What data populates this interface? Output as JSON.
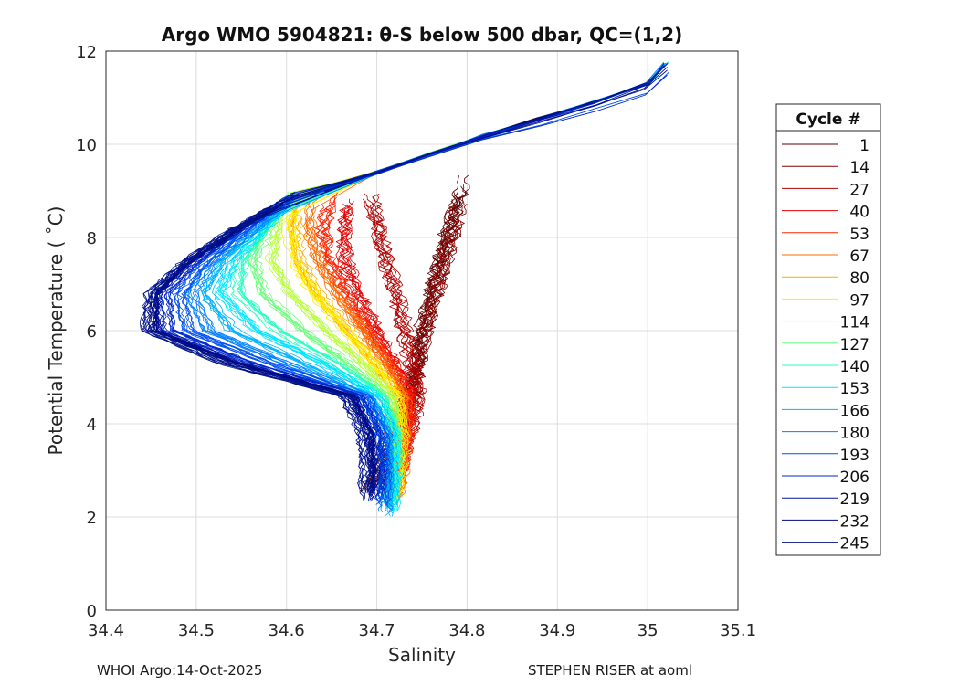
{
  "chart_data": {
    "type": "line",
    "title": "Argo WMO 5904821: θ-S below 500 dbar,  QC=(1,2)",
    "xlabel": "Salinity",
    "ylabel": "Potential Temperature ( ˚C)",
    "xlim": [
      34.4,
      35.1
    ],
    "ylim": [
      0,
      12
    ],
    "xticks": [
      34.4,
      34.5,
      34.6,
      34.7,
      34.8,
      34.9,
      35.0,
      35.1
    ],
    "xtick_labels": [
      "34.4",
      "34.5",
      "34.6",
      "34.7",
      "34.8",
      "34.9",
      "35",
      "35.1"
    ],
    "yticks": [
      0,
      2,
      4,
      6,
      8,
      10,
      12
    ],
    "ytick_labels": [
      "0",
      "2",
      "4",
      "6",
      "8",
      "10",
      "12"
    ],
    "grid": true,
    "legend": {
      "title": "Cycle #",
      "placement": "right",
      "entries": [
        {
          "label": "1",
          "color": "#5a0000"
        },
        {
          "label": "14",
          "color": "#870000"
        },
        {
          "label": "27",
          "color": "#b40000"
        },
        {
          "label": "40",
          "color": "#e00000"
        },
        {
          "label": "53",
          "color": "#ff2200"
        },
        {
          "label": "67",
          "color": "#ff6a00"
        },
        {
          "label": "80",
          "color": "#ffaa00"
        },
        {
          "label": "97",
          "color": "#ffee00"
        },
        {
          "label": "114",
          "color": "#b8ff3c"
        },
        {
          "label": "127",
          "color": "#6eff7e"
        },
        {
          "label": "140",
          "color": "#2affc0"
        },
        {
          "label": "153",
          "color": "#00e6ff"
        },
        {
          "label": "166",
          "color": "#00b4ff"
        },
        {
          "label": "180",
          "color": "#0080ff"
        },
        {
          "label": "193",
          "color": "#0050f0"
        },
        {
          "label": "206",
          "color": "#0028c8"
        },
        {
          "label": "219",
          "color": "#0010a0"
        },
        {
          "label": "232",
          "color": "#000a80"
        },
        {
          "label": "245",
          "color": "#00138f"
        }
      ]
    },
    "series": [
      {
        "name": "1",
        "color": "#5a0000",
        "x": [
          34.688,
          34.702,
          34.715,
          34.735,
          34.745,
          34.75,
          34.76,
          34.77,
          34.78,
          34.79,
          34.8
        ],
        "y": [
          2.5,
          3.0,
          3.8,
          4.6,
          5.3,
          6.0,
          6.8,
          7.5,
          8.2,
          8.8,
          9.5
        ]
      },
      {
        "name": "14",
        "color": "#870000",
        "x": [
          34.7,
          34.712,
          34.725,
          34.74,
          34.745,
          34.755,
          34.765,
          34.775,
          34.785,
          34.79
        ],
        "y": [
          2.5,
          3.0,
          3.8,
          4.6,
          5.3,
          6.0,
          6.8,
          7.5,
          8.2,
          8.9
        ]
      },
      {
        "name": "27",
        "color": "#b40000",
        "x": [
          34.712,
          34.722,
          34.735,
          34.745,
          34.738,
          34.73,
          34.72,
          34.71,
          34.7,
          34.69
        ],
        "y": [
          2.4,
          3.0,
          3.8,
          4.6,
          5.3,
          6.0,
          6.8,
          7.5,
          8.2,
          9.0
        ]
      },
      {
        "name": "40",
        "color": "#e00000",
        "x": [
          34.715,
          34.725,
          34.732,
          34.738,
          34.72,
          34.7,
          34.68,
          34.665,
          34.665,
          34.67
        ],
        "y": [
          2.4,
          3.0,
          3.8,
          4.6,
          5.3,
          6.0,
          6.8,
          7.5,
          8.2,
          9.0
        ]
      },
      {
        "name": "53",
        "color": "#ff2200",
        "x": [
          34.72,
          34.727,
          34.733,
          34.735,
          34.715,
          34.69,
          34.665,
          34.645,
          34.64,
          34.65
        ],
        "y": [
          2.4,
          3.0,
          3.8,
          4.6,
          5.3,
          6.0,
          6.8,
          7.5,
          8.2,
          9.0
        ]
      },
      {
        "name": "67",
        "color": "#ff6a00",
        "x": [
          34.722,
          34.728,
          34.732,
          34.73,
          34.71,
          34.685,
          34.655,
          34.635,
          34.625,
          34.63
        ],
        "y": [
          2.3,
          3.0,
          3.8,
          4.6,
          5.3,
          6.0,
          6.8,
          7.5,
          8.2,
          9.0
        ]
      },
      {
        "name": "80",
        "color": "#ffaa00",
        "x": [
          34.718,
          34.724,
          34.728,
          34.725,
          34.7,
          34.67,
          34.635,
          34.615,
          34.61,
          34.62
        ],
        "y": [
          2.3,
          3.0,
          3.8,
          4.6,
          5.3,
          6.0,
          6.8,
          7.5,
          8.2,
          9.0
        ]
      },
      {
        "name": "97",
        "color": "#ffee00",
        "x": [
          34.72,
          34.725,
          34.728,
          34.722,
          34.695,
          34.665,
          34.63,
          34.61,
          34.603,
          34.61
        ],
        "y": [
          2.3,
          3.0,
          3.8,
          4.6,
          5.3,
          6.0,
          6.8,
          7.5,
          8.2,
          9.0
        ]
      },
      {
        "name": "114",
        "color": "#b8ff3c",
        "x": [
          34.72,
          34.724,
          34.726,
          34.718,
          34.685,
          34.645,
          34.605,
          34.585,
          34.59,
          34.605
        ],
        "y": [
          2.3,
          3.0,
          3.8,
          4.6,
          5.3,
          6.0,
          6.8,
          7.5,
          8.2,
          9.0
        ]
      },
      {
        "name": "127",
        "color": "#6eff7e",
        "x": [
          34.716,
          34.72,
          34.722,
          34.712,
          34.67,
          34.62,
          34.575,
          34.565,
          34.58,
          34.605
        ],
        "y": [
          2.2,
          3.0,
          3.8,
          4.6,
          5.3,
          6.0,
          6.8,
          7.5,
          8.2,
          9.0
        ]
      },
      {
        "name": "140",
        "color": "#2affc0",
        "x": [
          34.714,
          34.718,
          34.72,
          34.705,
          34.655,
          34.59,
          34.545,
          34.55,
          34.575,
          34.61
        ],
        "y": [
          2.1,
          3.0,
          3.8,
          4.6,
          5.3,
          6.0,
          6.8,
          7.5,
          8.2,
          9.0
        ]
      },
      {
        "name": "153",
        "color": "#00e6ff",
        "x": [
          34.718,
          34.72,
          34.718,
          34.7,
          34.64,
          34.565,
          34.525,
          34.54,
          34.575,
          34.615
        ],
        "y": [
          2.0,
          3.0,
          3.8,
          4.6,
          5.3,
          6.0,
          6.8,
          7.5,
          8.2,
          9.0
        ]
      },
      {
        "name": "166",
        "color": "#00b4ff",
        "x": [
          34.715,
          34.716,
          34.714,
          34.695,
          34.62,
          34.54,
          34.51,
          34.53,
          34.57,
          34.62
        ],
        "y": [
          2.0,
          3.0,
          3.8,
          4.6,
          5.3,
          6.0,
          6.8,
          7.5,
          8.2,
          9.0
        ]
      },
      {
        "name": "180",
        "color": "#0080ff",
        "x": [
          34.71,
          34.712,
          34.71,
          34.69,
          34.6,
          34.515,
          34.495,
          34.52,
          34.565,
          34.62
        ],
        "y": [
          2.1,
          3.0,
          3.8,
          4.6,
          5.3,
          6.0,
          6.8,
          7.5,
          8.2,
          9.0
        ]
      },
      {
        "name": "193",
        "color": "#0050f0",
        "x": [
          34.705,
          34.708,
          34.705,
          34.685,
          34.58,
          34.49,
          34.48,
          34.51,
          34.555,
          34.615
        ],
        "y": [
          2.2,
          3.0,
          3.8,
          4.6,
          5.3,
          6.0,
          6.8,
          7.5,
          8.2,
          9.0
        ]
      },
      {
        "name": "206",
        "color": "#0028c8",
        "x": [
          34.7,
          34.703,
          34.7,
          34.68,
          34.56,
          34.47,
          34.465,
          34.5,
          34.55,
          34.615
        ],
        "y": [
          2.3,
          3.0,
          3.8,
          4.6,
          5.3,
          6.0,
          6.8,
          7.5,
          8.2,
          9.0
        ]
      },
      {
        "name": "219",
        "color": "#0010a0",
        "x": [
          34.695,
          34.698,
          34.695,
          34.675,
          34.55,
          34.46,
          34.458,
          34.495,
          34.55,
          34.62
        ],
        "y": [
          2.3,
          3.0,
          3.8,
          4.6,
          5.3,
          6.0,
          6.8,
          7.5,
          8.2,
          9.0
        ]
      },
      {
        "name": "232",
        "color": "#000a80",
        "x": [
          34.69,
          34.693,
          34.69,
          34.67,
          34.54,
          34.45,
          34.452,
          34.49,
          34.545,
          34.615
        ],
        "y": [
          2.3,
          3.0,
          3.8,
          4.6,
          5.3,
          6.0,
          6.8,
          7.5,
          8.2,
          9.0
        ]
      },
      {
        "name": "245",
        "color": "#00138f",
        "x": [
          34.685,
          34.688,
          34.685,
          34.665,
          34.53,
          34.445,
          34.45,
          34.49,
          34.545,
          34.62
        ],
        "y": [
          2.3,
          3.0,
          3.8,
          4.6,
          5.3,
          6.0,
          6.8,
          7.5,
          8.2,
          9.0
        ]
      }
    ],
    "upper_branch": {
      "x": [
        34.64,
        34.7,
        34.76,
        34.82,
        34.88,
        34.94,
        35.0,
        35.02
      ],
      "y": [
        9.0,
        9.4,
        9.8,
        10.2,
        10.55,
        10.9,
        11.3,
        11.75
      ]
    }
  },
  "footer": {
    "left": "WHOI Argo:14-Oct-2025",
    "right": "STEPHEN RISER at aoml"
  }
}
